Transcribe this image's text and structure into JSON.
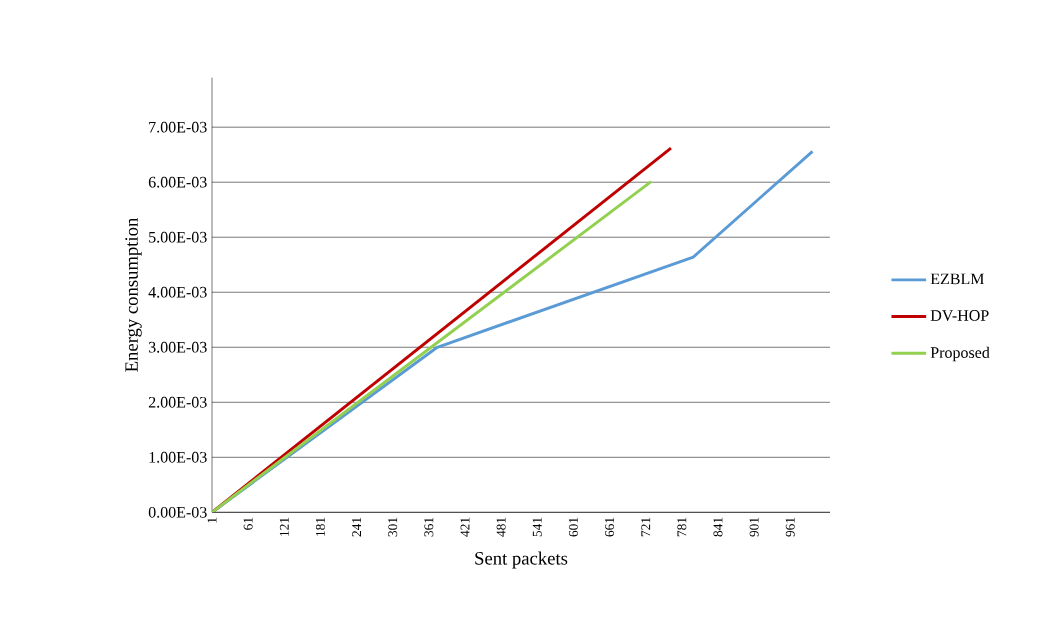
{
  "chart_data": {
    "type": "line",
    "xlabel": "Sent packets",
    "ylabel": "Energy consumption",
    "series": [
      {
        "name": "EZBLM",
        "color": "#5b9bd5",
        "x": [
          1,
          375,
          800,
          998
        ],
        "values": [
          0,
          0.003,
          0.00464,
          0.00656
        ]
      },
      {
        "name": "DV-HOP",
        "color": "#c00000",
        "x": [
          1,
          763
        ],
        "values": [
          0,
          0.00662
        ]
      },
      {
        "name": "Proposed",
        "color": "#92d050",
        "x": [
          1,
          730
        ],
        "values": [
          0,
          0.00601
        ]
      }
    ],
    "xlim": [
      1,
      1027
    ],
    "ylim": [
      0,
      0.0079
    ],
    "xticks": [
      1,
      61,
      121,
      181,
      241,
      301,
      361,
      421,
      481,
      541,
      601,
      661,
      721,
      781,
      841,
      901,
      961
    ],
    "yticks": [
      {
        "value": 0,
        "label": "0.00E-03"
      },
      {
        "value": 0.001,
        "label": "1.00E-03"
      },
      {
        "value": 0.002,
        "label": "2.00E-03"
      },
      {
        "value": 0.003,
        "label": "3.00E-03"
      },
      {
        "value": 0.004,
        "label": "4.00E-03"
      },
      {
        "value": 0.005,
        "label": "5.00E-03"
      },
      {
        "value": 0.006,
        "label": "6.00E-03"
      },
      {
        "value": 0.007,
        "label": "7.00E-03"
      }
    ],
    "grid": "y",
    "legend": "right",
    "marker": "none",
    "line_style": "solid"
  }
}
